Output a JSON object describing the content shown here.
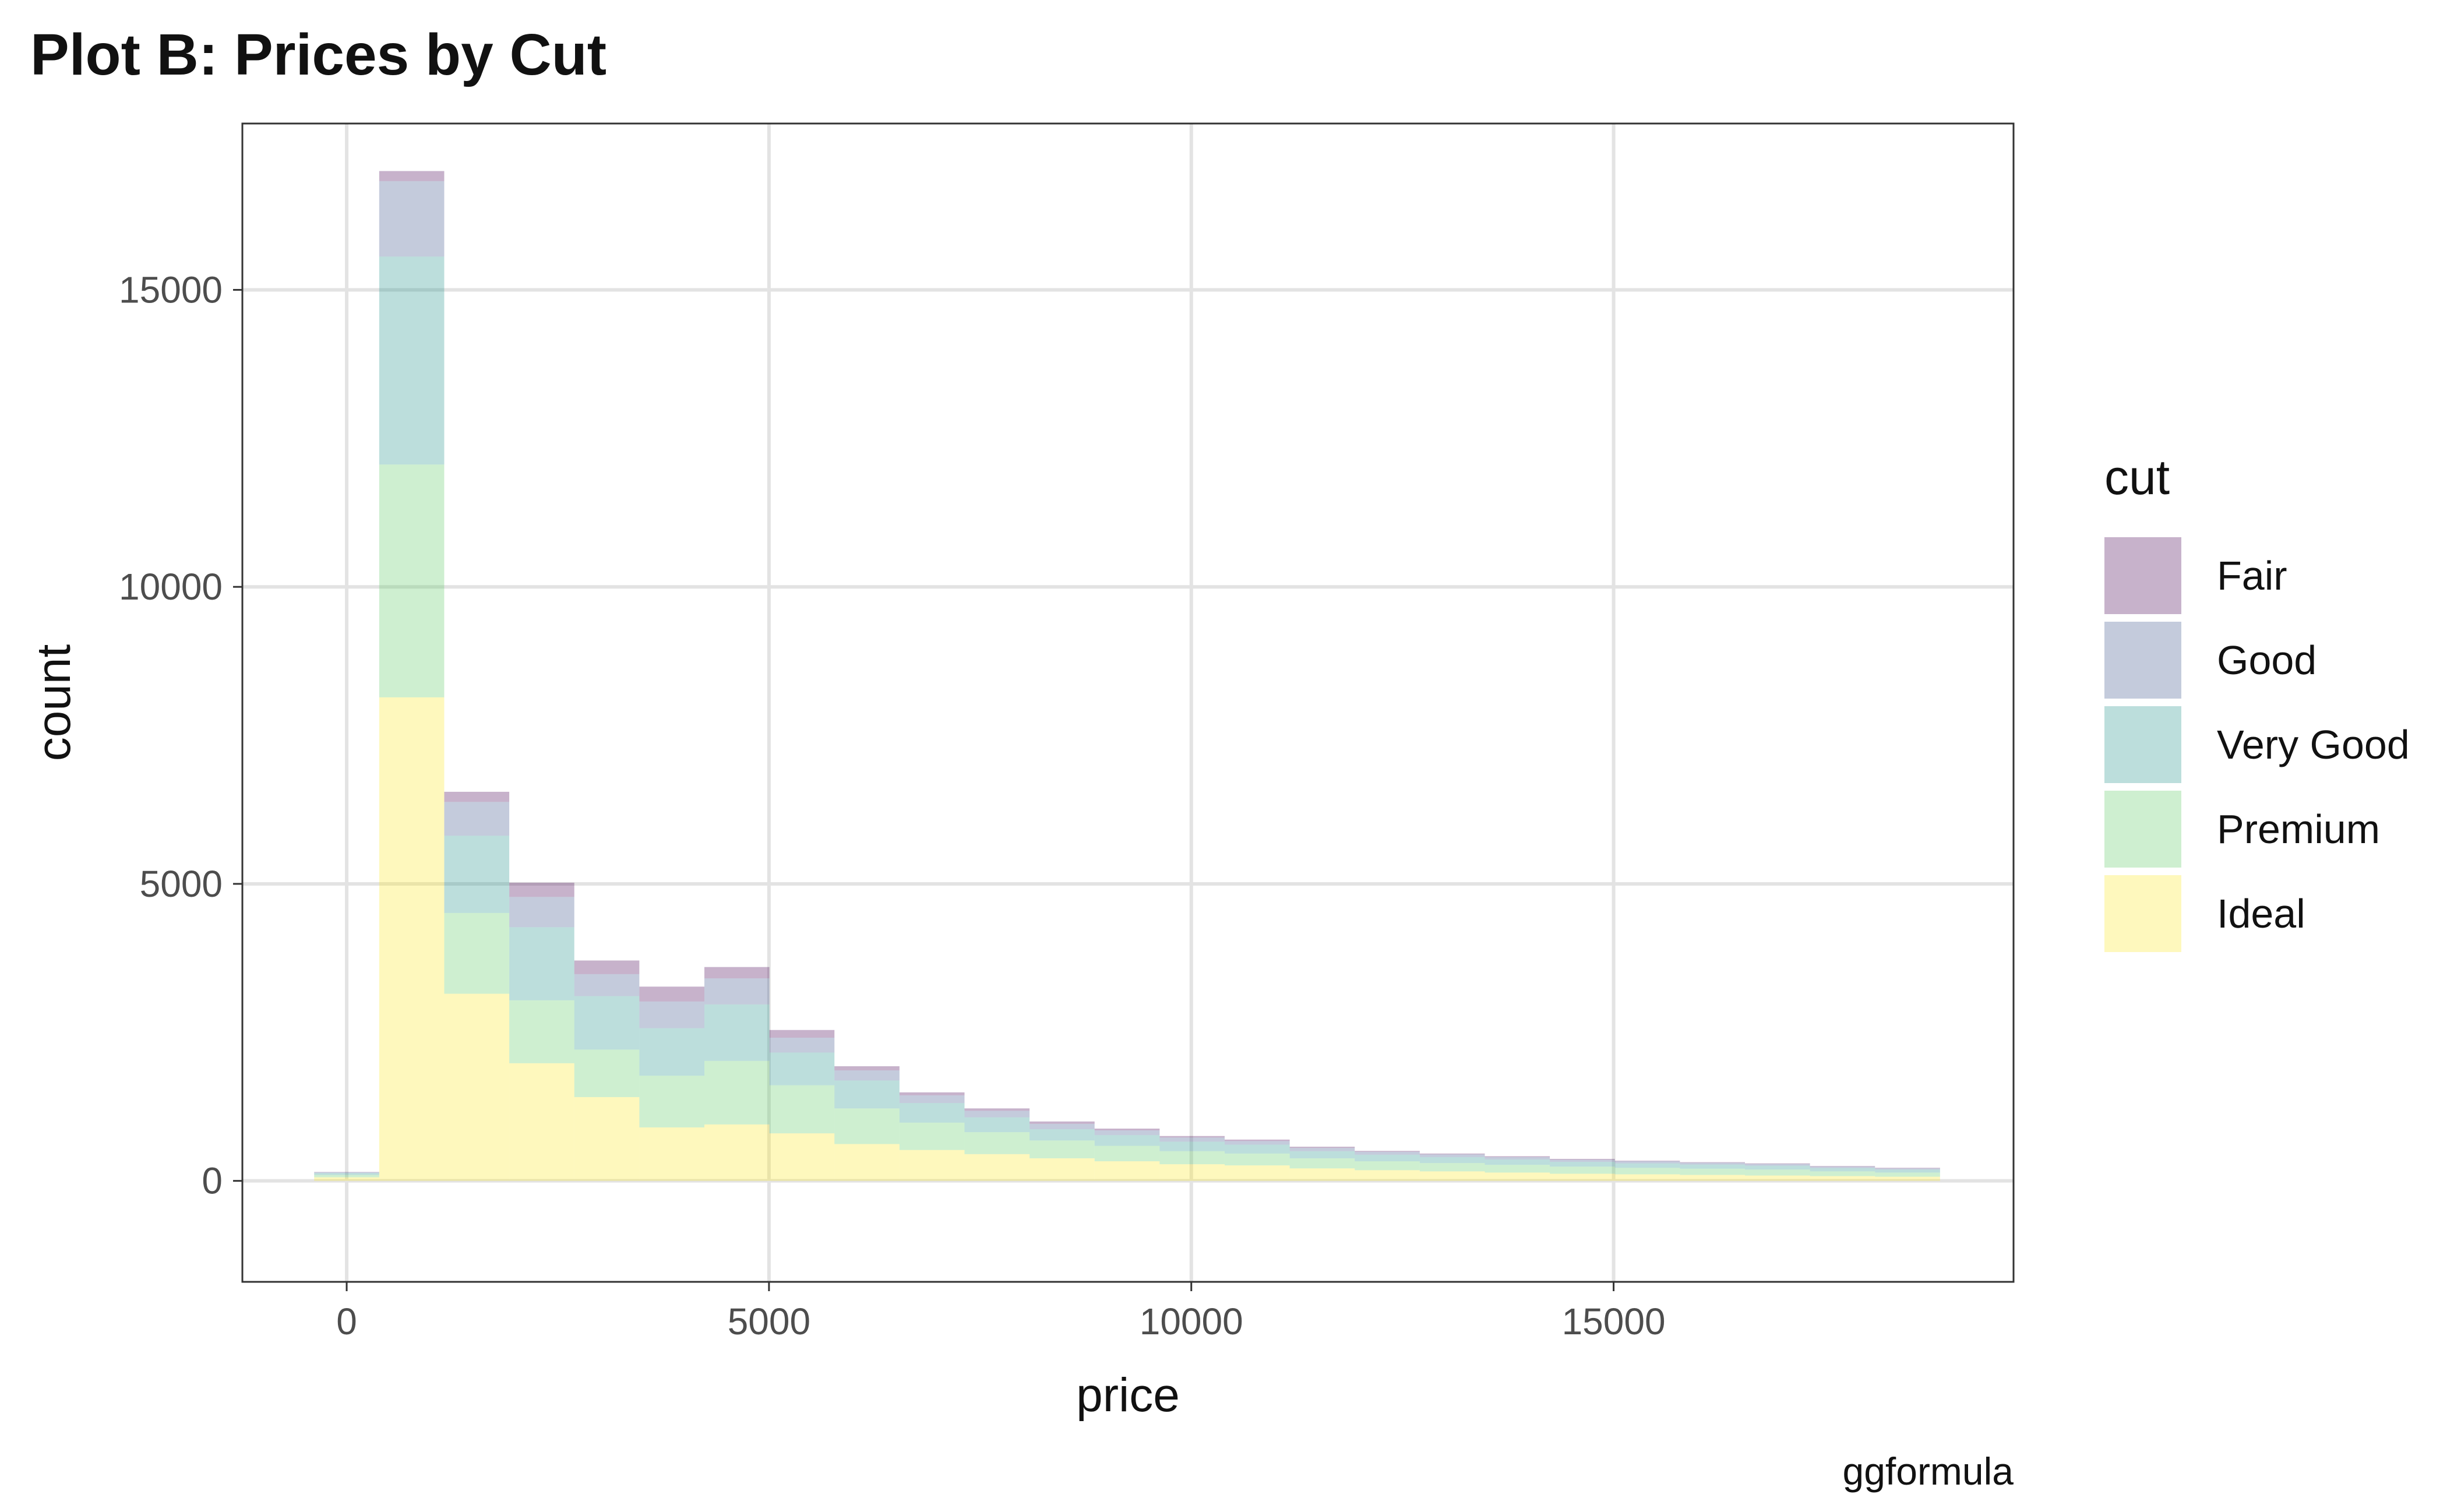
{
  "chart_data": {
    "type": "bar",
    "stacked": true,
    "title": "Plot B: Prices by Cut",
    "xlabel": "price",
    "ylabel": "count",
    "caption": "ggformula",
    "xlim": [
      -1235,
      19735
    ],
    "ylim": [
      -1700,
      17800
    ],
    "x_ticks": [
      0,
      5000,
      10000,
      15000
    ],
    "y_ticks": [
      0,
      5000,
      10000,
      15000
    ],
    "x_tick_labels": [
      "0",
      "5000",
      "10000",
      "15000"
    ],
    "y_tick_labels": [
      "0",
      "5000",
      "10000",
      "15000"
    ],
    "grid": true,
    "legend_title": "cut",
    "legend_position": "right",
    "bin_width": 770,
    "bin_starts": [
      -385,
      385,
      1155,
      1925,
      2695,
      3465,
      4235,
      5005,
      5775,
      6545,
      7315,
      8085,
      8855,
      9625,
      10395,
      11165,
      11935,
      12705,
      13475,
      14245,
      15015,
      15785,
      16555,
      17325,
      18095
    ],
    "series": [
      {
        "name": "Ideal",
        "color": "#fde725",
        "values": [
          60,
          8140,
          3150,
          1980,
          1410,
          900,
          950,
          800,
          620,
          520,
          450,
          380,
          330,
          280,
          260,
          210,
          180,
          160,
          140,
          120,
          110,
          100,
          90,
          80,
          70
        ]
      },
      {
        "name": "Premium",
        "color": "#5ec962",
        "values": [
          40,
          3920,
          1360,
          1060,
          800,
          870,
          1070,
          810,
          600,
          460,
          370,
          300,
          260,
          220,
          200,
          170,
          150,
          140,
          130,
          120,
          110,
          105,
          100,
          80,
          70
        ]
      },
      {
        "name": "Very Good",
        "color": "#21918c",
        "values": [
          30,
          3500,
          1300,
          1230,
          900,
          800,
          950,
          550,
          470,
          330,
          250,
          190,
          180,
          160,
          150,
          120,
          110,
          100,
          90,
          80,
          75,
          70,
          65,
          55,
          50
        ]
      },
      {
        "name": "Good",
        "color": "#3b528b",
        "values": [
          15,
          1270,
          570,
          510,
          370,
          450,
          440,
          250,
          170,
          130,
          110,
          90,
          80,
          70,
          60,
          55,
          50,
          45,
          40,
          35,
          35,
          30,
          30,
          25,
          20
        ]
      },
      {
        "name": "Fair",
        "color": "#440154",
        "values": [
          5,
          170,
          170,
          240,
          230,
          250,
          190,
          130,
          70,
          50,
          40,
          40,
          30,
          25,
          25,
          20,
          15,
          15,
          15,
          15,
          10,
          10,
          10,
          10,
          10
        ]
      }
    ]
  }
}
